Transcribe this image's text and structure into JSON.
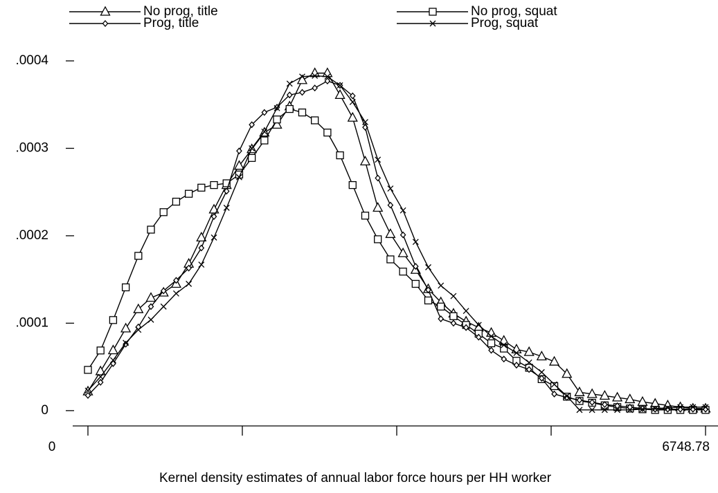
{
  "chart_data": {
    "type": "line",
    "x_label": "Kernel density estimates of annual labor force hours per HH worker",
    "x": [
      0,
      137.73,
      275.46,
      413.19,
      550.92,
      688.65,
      826.38,
      964.11,
      1101.84,
      1239.57,
      1377.3,
      1515.03,
      1652.76,
      1790.49,
      1928.22,
      2065.95,
      2203.68,
      2341.41,
      2479.14,
      2616.87,
      2754.6,
      2892.33,
      3030.07,
      3167.8,
      3305.53,
      3443.26,
      3580.99,
      3718.72,
      3856.45,
      3994.18,
      4131.91,
      4269.64,
      4407.37,
      4545.1,
      4682.83,
      4820.56,
      4958.29,
      5096.02,
      5233.75,
      5371.48,
      5509.21,
      5646.94,
      5784.67,
      5922.4,
      6060.13,
      6197.86,
      6335.59,
      6473.32,
      6611.05,
      6748.78
    ],
    "series": [
      {
        "name": "No prog, title",
        "marker": "triangle",
        "color": "#000000",
        "values": [
          2.2e-05,
          4.5e-05,
          6.9e-05,
          9.4e-05,
          0.000116,
          0.000129,
          0.000135,
          0.000145,
          0.000168,
          0.000198,
          0.00023,
          0.000258,
          0.00028,
          0.000299,
          0.000318,
          0.000327,
          0.000348,
          0.000378,
          0.000386,
          0.000386,
          0.000361,
          0.000335,
          0.000285,
          0.000232,
          0.000202,
          0.00018,
          0.000161,
          0.000139,
          0.000124,
          0.000111,
          0.000102,
          9.5e-05,
          8.9e-05,
          8e-05,
          7e-05,
          6.7e-05,
          6.2e-05,
          5.6e-05,
          4.2e-05,
          2.1e-05,
          1.9e-05,
          1.7e-05,
          1.5e-05,
          1.3e-05,
          1e-05,
          8e-06,
          6e-06,
          4e-06,
          2.4e-06,
          2.4e-06
        ]
      },
      {
        "name": "No prog, squat",
        "marker": "square",
        "color": "#000000",
        "values": [
          4.66e-05,
          6.88e-05,
          0.0001036,
          0.000141,
          0.000177,
          0.000207,
          0.000227,
          0.000239,
          0.000248,
          0.000255,
          0.000258,
          0.00026,
          0.00027,
          0.000289,
          0.000309,
          0.000333,
          0.000345,
          0.000341,
          0.000332,
          0.000318,
          0.000292,
          0.000258,
          0.000223,
          0.000196,
          0.000173,
          0.000159,
          0.000145,
          0.000126,
          0.000119,
          0.000108,
          9.8e-05,
          8.8e-05,
          7.7e-05,
          7.1e-05,
          5.7e-05,
          4.9e-05,
          3.6e-05,
          2.8e-05,
          1.6e-05,
          1.1e-05,
          9e-06,
          6e-06,
          4e-06,
          2.4e-06,
          1.6e-06,
          8e-07,
          8e-07,
          8e-07,
          8e-07,
          8e-07
        ]
      },
      {
        "name": "Prog, title",
        "marker": "diamond",
        "color": "#000000",
        "values": [
          1.74e-05,
          3.24e-05,
          5.38e-05,
          7.6e-05,
          9.57e-05,
          0.000119,
          0.000137,
          0.000149,
          0.000163,
          0.000186,
          0.000222,
          0.000251,
          0.000297,
          0.000327,
          0.000341,
          0.000347,
          0.000361,
          0.000364,
          0.000369,
          0.000377,
          0.000372,
          0.00036,
          0.000324,
          0.000266,
          0.000235,
          0.000201,
          0.000165,
          0.000138,
          0.000105,
          0.0001,
          9.5e-05,
          8.4e-05,
          6.9e-05,
          5.9e-05,
          5.2e-05,
          4.7e-05,
          3.7e-05,
          1.9e-05,
          1.5e-05,
          1.2e-05,
          9.5e-06,
          7e-06,
          5.5e-06,
          4e-06,
          2.4e-06,
          1.6e-06,
          1.6e-06,
          1.6e-06,
          1.6e-06,
          1.6e-06
        ]
      },
      {
        "name": "Prog, squat",
        "marker": "cross",
        "color": "#000000",
        "values": [
          2.29e-05,
          3.87e-05,
          5.77e-05,
          7.75e-05,
          9.25e-05,
          0.000104,
          0.000119,
          0.000134,
          0.000145,
          0.000167,
          0.000198,
          0.000232,
          0.000267,
          0.0003,
          0.000319,
          0.000346,
          0.000374,
          0.000382,
          0.000383,
          0.000382,
          0.000372,
          0.000353,
          0.00033,
          0.000287,
          0.000254,
          0.000229,
          0.000193,
          0.000164,
          0.000143,
          0.000131,
          0.000114,
          9.8e-05,
          8.5e-05,
          7.5e-05,
          6.6e-05,
          5.5e-05,
          4.4e-05,
          3e-05,
          1.66e-05,
          8e-07,
          8e-07,
          8e-07,
          8e-07,
          8e-07,
          1.6e-06,
          2.4e-06,
          3.2e-06,
          4e-06,
          4e-06,
          4e-06
        ]
      }
    ],
    "xlim": [
      0,
      6748.78
    ],
    "xticks": [
      0,
      {
        "value": 1687.2,
        "label": null
      },
      {
        "value": 3374.39,
        "label": null
      },
      {
        "value": 5061.59,
        "label": null
      },
      {
        "value": 6748.78,
        "label": "6748.78"
      }
    ],
    "ylim": [
      -1.75e-05,
      0.00041
    ],
    "yticks": [
      0,
      {
        "value": 0.0001,
        "label": ".0001"
      },
      {
        "value": 0.0002,
        "label": ".0002"
      },
      {
        "value": 0.0003,
        "label": ".0003"
      },
      {
        "value": 0.0004,
        "label": ".0004"
      }
    ],
    "legend": "top"
  }
}
